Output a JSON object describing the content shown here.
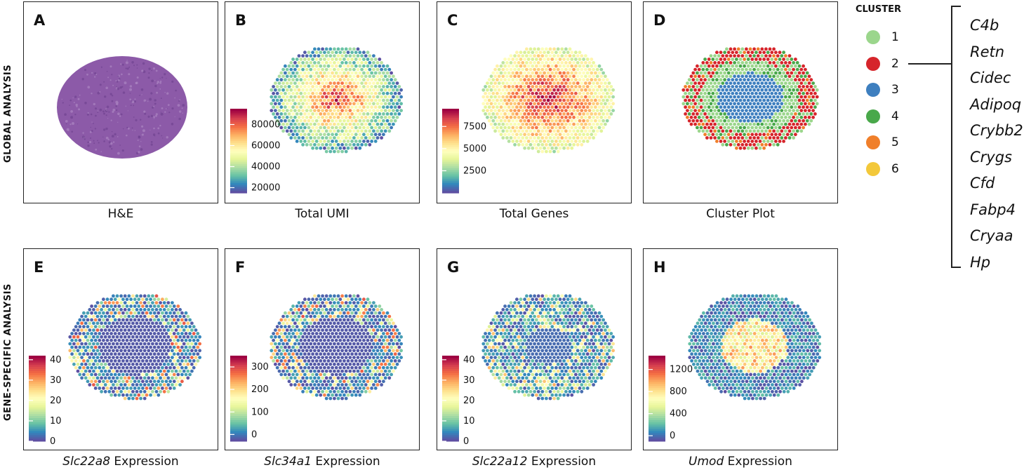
{
  "row_labels": {
    "top": "GLOBAL ANALYSIS",
    "bottom": "GENE-SPECIFIC ANALYSIS"
  },
  "panels": [
    {
      "id": "A",
      "letter": "A",
      "caption": "H&E",
      "caption_italic": "",
      "kind": "he"
    },
    {
      "id": "B",
      "letter": "B",
      "caption": "Total UMI",
      "caption_italic": "",
      "kind": "heat",
      "pattern": "umi",
      "colorbar": {
        "min": 15000,
        "max": 95000,
        "ticks": [
          "80000",
          "60000",
          "40000",
          "20000"
        ]
      }
    },
    {
      "id": "C",
      "letter": "C",
      "caption": "Total Genes",
      "caption_italic": "",
      "kind": "heat",
      "pattern": "genes",
      "colorbar": {
        "min": 0,
        "max": 9500,
        "ticks": [
          "7500",
          "5000",
          "2500"
        ]
      }
    },
    {
      "id": "D",
      "letter": "D",
      "caption": "Cluster Plot",
      "caption_italic": "",
      "kind": "cluster"
    },
    {
      "id": "E",
      "letter": "E",
      "caption": " Expression",
      "caption_italic": "Slc22a8",
      "kind": "heat",
      "pattern": "ring",
      "colorbar": {
        "min": 0,
        "max": 42,
        "ticks": [
          "40",
          "30",
          "20",
          "10",
          "0"
        ]
      }
    },
    {
      "id": "F",
      "letter": "F",
      "caption": " Expression",
      "caption_italic": "Slc34a1",
      "kind": "heat",
      "pattern": "ring",
      "colorbar": {
        "min": -30,
        "max": 350,
        "ticks": [
          "300",
          "200",
          "100",
          "0"
        ]
      }
    },
    {
      "id": "G",
      "letter": "G",
      "caption": " Expression",
      "caption_italic": "Slc22a12",
      "kind": "heat",
      "pattern": "ring2",
      "colorbar": {
        "min": 0,
        "max": 42,
        "ticks": [
          "40",
          "30",
          "20",
          "10",
          "0"
        ]
      }
    },
    {
      "id": "H",
      "letter": "H",
      "caption": " Expression",
      "caption_italic": "Umod",
      "kind": "heat",
      "pattern": "center",
      "colorbar": {
        "min": -100,
        "max": 1450,
        "ticks": [
          "1200",
          "800",
          "400",
          "0"
        ]
      }
    }
  ],
  "legend": {
    "title": "CLUSTER",
    "items": [
      {
        "label": "1",
        "color": "#9bd68c"
      },
      {
        "label": "2",
        "color": "#d6252b"
      },
      {
        "label": "3",
        "color": "#3e7fbf"
      },
      {
        "label": "4",
        "color": "#49a84a"
      },
      {
        "label": "5",
        "color": "#f07f2a"
      },
      {
        "label": "6",
        "color": "#f3c83a"
      }
    ]
  },
  "cluster2_genes": [
    "C4b",
    "Retn",
    "Cidec",
    "Adipoq",
    "Crybb2",
    "Crygs",
    "Cfd",
    "Fabp4",
    "Cryaa",
    "Hp"
  ],
  "colors": {
    "spectral": [
      "#5e4fa2",
      "#3288bd",
      "#66c2a5",
      "#abdda4",
      "#e6f598",
      "#ffffbf",
      "#fee08b",
      "#fdae61",
      "#f46d43",
      "#d53e4f",
      "#9e0142"
    ],
    "he_tissue": "#8c5aa8"
  }
}
